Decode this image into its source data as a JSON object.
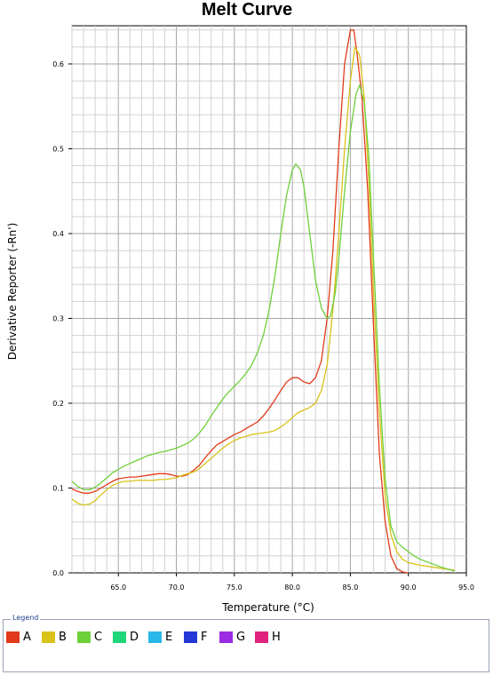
{
  "chart_data": {
    "type": "line",
    "title": "Melt Curve",
    "xlabel": "Temperature (°C)",
    "ylabel": "Derivative Reporter (-Rn')",
    "xlim": [
      61.0,
      95.0
    ],
    "ylim": [
      0.0,
      0.645
    ],
    "xticks": [
      65.0,
      70.0,
      75.0,
      80.0,
      85.0,
      90.0,
      95.0
    ],
    "xtick_labels": [
      "65.0",
      "70.0",
      "75.0",
      "80.0",
      "85.0",
      "90.0",
      "95.0"
    ],
    "yticks": [
      0.0,
      0.1,
      0.2,
      0.3,
      0.4,
      0.5,
      0.6
    ],
    "ytick_labels": [
      "0.0",
      "0.1",
      "0.2",
      "0.3",
      "0.4",
      "0.5",
      "0.6"
    ],
    "grid": true,
    "series": [
      {
        "name": "A",
        "color": "#e23b1b",
        "points": [
          [
            61.0,
            0.099
          ],
          [
            61.5,
            0.096
          ],
          [
            62.0,
            0.094
          ],
          [
            62.5,
            0.094
          ],
          [
            63.0,
            0.096
          ],
          [
            63.5,
            0.1
          ],
          [
            64.0,
            0.104
          ],
          [
            64.5,
            0.108
          ],
          [
            65.0,
            0.111
          ],
          [
            65.5,
            0.112
          ],
          [
            66.0,
            0.113
          ],
          [
            66.5,
            0.113
          ],
          [
            67.0,
            0.114
          ],
          [
            67.5,
            0.115
          ],
          [
            68.0,
            0.116
          ],
          [
            68.5,
            0.117
          ],
          [
            69.0,
            0.117
          ],
          [
            69.5,
            0.116
          ],
          [
            70.0,
            0.114
          ],
          [
            70.5,
            0.114
          ],
          [
            71.0,
            0.116
          ],
          [
            71.5,
            0.121
          ],
          [
            72.0,
            0.127
          ],
          [
            72.5,
            0.136
          ],
          [
            73.0,
            0.144
          ],
          [
            73.5,
            0.151
          ],
          [
            74.0,
            0.155
          ],
          [
            74.5,
            0.159
          ],
          [
            75.0,
            0.163
          ],
          [
            75.5,
            0.166
          ],
          [
            76.0,
            0.17
          ],
          [
            76.5,
            0.174
          ],
          [
            77.0,
            0.178
          ],
          [
            77.5,
            0.185
          ],
          [
            78.0,
            0.194
          ],
          [
            78.5,
            0.204
          ],
          [
            79.0,
            0.215
          ],
          [
            79.5,
            0.225
          ],
          [
            80.0,
            0.23
          ],
          [
            80.5,
            0.23
          ],
          [
            81.0,
            0.225
          ],
          [
            81.5,
            0.223
          ],
          [
            82.0,
            0.23
          ],
          [
            82.5,
            0.25
          ],
          [
            83.0,
            0.3
          ],
          [
            83.5,
            0.38
          ],
          [
            84.0,
            0.5
          ],
          [
            84.5,
            0.6
          ],
          [
            85.0,
            0.64
          ],
          [
            85.3,
            0.64
          ],
          [
            85.6,
            0.61
          ],
          [
            86.0,
            0.56
          ],
          [
            86.5,
            0.45
          ],
          [
            87.0,
            0.29
          ],
          [
            87.5,
            0.14
          ],
          [
            88.0,
            0.06
          ],
          [
            88.5,
            0.02
          ],
          [
            89.0,
            0.005
          ],
          [
            89.5,
            0.001
          ],
          [
            90.0,
            0.0
          ]
        ]
      },
      {
        "name": "B",
        "color": "#d9c21a",
        "points": [
          [
            61.0,
            0.087
          ],
          [
            61.5,
            0.082
          ],
          [
            62.0,
            0.08
          ],
          [
            62.5,
            0.081
          ],
          [
            63.0,
            0.085
          ],
          [
            63.5,
            0.092
          ],
          [
            64.0,
            0.098
          ],
          [
            64.5,
            0.103
          ],
          [
            65.0,
            0.106
          ],
          [
            65.5,
            0.108
          ],
          [
            66.0,
            0.108
          ],
          [
            66.5,
            0.109
          ],
          [
            67.0,
            0.109
          ],
          [
            67.5,
            0.109
          ],
          [
            68.0,
            0.109
          ],
          [
            68.5,
            0.11
          ],
          [
            69.0,
            0.11
          ],
          [
            69.5,
            0.111
          ],
          [
            70.0,
            0.112
          ],
          [
            70.5,
            0.115
          ],
          [
            71.0,
            0.117
          ],
          [
            71.5,
            0.119
          ],
          [
            72.0,
            0.123
          ],
          [
            72.5,
            0.129
          ],
          [
            73.0,
            0.135
          ],
          [
            73.5,
            0.141
          ],
          [
            74.0,
            0.147
          ],
          [
            74.5,
            0.152
          ],
          [
            75.0,
            0.156
          ],
          [
            75.5,
            0.159
          ],
          [
            76.0,
            0.161
          ],
          [
            76.5,
            0.163
          ],
          [
            77.0,
            0.164
          ],
          [
            77.5,
            0.165
          ],
          [
            78.0,
            0.166
          ],
          [
            78.5,
            0.168
          ],
          [
            79.0,
            0.172
          ],
          [
            79.5,
            0.177
          ],
          [
            80.0,
            0.183
          ],
          [
            80.5,
            0.189
          ],
          [
            81.0,
            0.192
          ],
          [
            81.5,
            0.195
          ],
          [
            82.0,
            0.2
          ],
          [
            82.5,
            0.215
          ],
          [
            83.0,
            0.245
          ],
          [
            83.5,
            0.31
          ],
          [
            84.0,
            0.4
          ],
          [
            84.5,
            0.5
          ],
          [
            85.0,
            0.58
          ],
          [
            85.4,
            0.62
          ],
          [
            85.8,
            0.61
          ],
          [
            86.2,
            0.56
          ],
          [
            86.6,
            0.46
          ],
          [
            87.0,
            0.33
          ],
          [
            87.5,
            0.19
          ],
          [
            88.0,
            0.09
          ],
          [
            88.5,
            0.045
          ],
          [
            89.0,
            0.025
          ],
          [
            89.5,
            0.016
          ],
          [
            90.0,
            0.012
          ],
          [
            91.0,
            0.009
          ],
          [
            92.0,
            0.007
          ],
          [
            93.0,
            0.005
          ],
          [
            94.0,
            0.003
          ]
        ]
      },
      {
        "name": "C",
        "color": "#6fd03a",
        "points": [
          [
            61.0,
            0.108
          ],
          [
            61.5,
            0.102
          ],
          [
            62.0,
            0.098
          ],
          [
            62.5,
            0.098
          ],
          [
            63.0,
            0.101
          ],
          [
            63.5,
            0.106
          ],
          [
            64.0,
            0.112
          ],
          [
            64.5,
            0.118
          ],
          [
            65.0,
            0.122
          ],
          [
            65.5,
            0.126
          ],
          [
            66.0,
            0.129
          ],
          [
            66.5,
            0.132
          ],
          [
            67.0,
            0.135
          ],
          [
            67.5,
            0.138
          ],
          [
            68.0,
            0.14
          ],
          [
            68.5,
            0.142
          ],
          [
            69.0,
            0.143
          ],
          [
            69.5,
            0.145
          ],
          [
            70.0,
            0.147
          ],
          [
            70.5,
            0.15
          ],
          [
            71.0,
            0.153
          ],
          [
            71.5,
            0.158
          ],
          [
            72.0,
            0.165
          ],
          [
            72.5,
            0.174
          ],
          [
            73.0,
            0.185
          ],
          [
            73.5,
            0.195
          ],
          [
            74.0,
            0.205
          ],
          [
            74.5,
            0.213
          ],
          [
            75.0,
            0.22
          ],
          [
            75.5,
            0.227
          ],
          [
            76.0,
            0.235
          ],
          [
            76.5,
            0.245
          ],
          [
            77.0,
            0.26
          ],
          [
            77.5,
            0.28
          ],
          [
            78.0,
            0.31
          ],
          [
            78.5,
            0.35
          ],
          [
            79.0,
            0.4
          ],
          [
            79.5,
            0.445
          ],
          [
            80.0,
            0.475
          ],
          [
            80.3,
            0.482
          ],
          [
            80.7,
            0.475
          ],
          [
            81.0,
            0.455
          ],
          [
            81.5,
            0.4
          ],
          [
            82.0,
            0.345
          ],
          [
            82.5,
            0.312
          ],
          [
            83.0,
            0.3
          ],
          [
            83.3,
            0.303
          ],
          [
            83.7,
            0.33
          ],
          [
            84.0,
            0.37
          ],
          [
            84.5,
            0.45
          ],
          [
            85.0,
            0.52
          ],
          [
            85.5,
            0.565
          ],
          [
            85.8,
            0.575
          ],
          [
            86.2,
            0.555
          ],
          [
            86.6,
            0.49
          ],
          [
            87.0,
            0.37
          ],
          [
            87.5,
            0.22
          ],
          [
            88.0,
            0.11
          ],
          [
            88.5,
            0.055
          ],
          [
            89.0,
            0.037
          ],
          [
            89.5,
            0.03
          ],
          [
            90.0,
            0.025
          ],
          [
            90.5,
            0.02
          ],
          [
            91.0,
            0.016
          ],
          [
            92.0,
            0.011
          ],
          [
            93.0,
            0.006
          ],
          [
            94.0,
            0.002
          ]
        ]
      }
    ]
  },
  "legend": {
    "title": "Legend",
    "items": [
      {
        "label": "A",
        "color": "#e23b1b"
      },
      {
        "label": "B",
        "color": "#d9c21a"
      },
      {
        "label": "C",
        "color": "#6fd03a"
      },
      {
        "label": "D",
        "color": "#1fd67a"
      },
      {
        "label": "E",
        "color": "#2ab7e8"
      },
      {
        "label": "F",
        "color": "#2438d6"
      },
      {
        "label": "G",
        "color": "#9a2be0"
      },
      {
        "label": "H",
        "color": "#e0247e"
      }
    ]
  }
}
